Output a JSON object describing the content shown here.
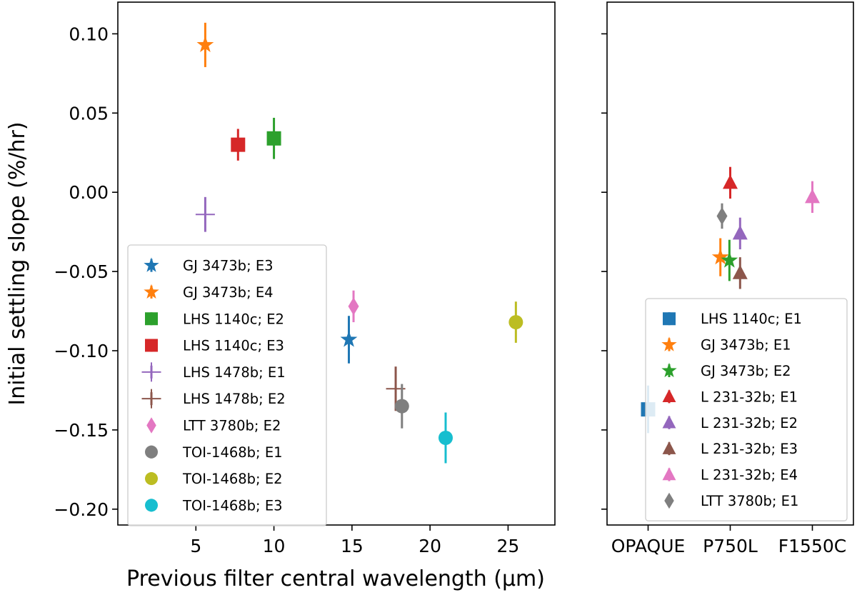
{
  "chart_data": [
    {
      "type": "scatter",
      "panel": "left",
      "xlabel": "Previous filter central wavelength (μm)",
      "ylabel": "Initial settling slope (%/hr)",
      "xlim": [
        0,
        28
      ],
      "ylim": [
        -0.21,
        0.12
      ],
      "xticks": [
        {
          "value": 5,
          "label": "5"
        },
        {
          "value": 10,
          "label": "10"
        },
        {
          "value": 15,
          "label": "15"
        },
        {
          "value": 20,
          "label": "20"
        },
        {
          "value": 25,
          "label": "25"
        }
      ],
      "yticks": [
        {
          "value": 0.1,
          "label": "0.10"
        },
        {
          "value": 0.05,
          "label": "0.05"
        },
        {
          "value": 0.0,
          "label": "0.00"
        },
        {
          "value": -0.05,
          "label": "−0.05"
        },
        {
          "value": -0.1,
          "label": "−0.10"
        },
        {
          "value": -0.15,
          "label": "−0.15"
        },
        {
          "value": -0.2,
          "label": "−0.20"
        }
      ],
      "legend_position": "center-left",
      "series": [
        {
          "name": "GJ 3473b; E3",
          "color": "#1f77b4",
          "marker": "star",
          "x": 14.8,
          "y": -0.093,
          "yerr": 0.015
        },
        {
          "name": "GJ 3473b; E4",
          "color": "#ff7f0e",
          "marker": "star",
          "x": 5.6,
          "y": 0.093,
          "yerr": 0.014
        },
        {
          "name": "LHS 1140c; E2",
          "color": "#2ca02c",
          "marker": "square",
          "x": 10.0,
          "y": 0.034,
          "yerr": 0.013
        },
        {
          "name": "LHS 1140c; E3",
          "color": "#d62728",
          "marker": "square",
          "x": 7.7,
          "y": 0.03,
          "yerr": 0.01
        },
        {
          "name": "LHS 1478b; E1",
          "color": "#9467bd",
          "marker": "plus",
          "x": 5.6,
          "y": -0.014,
          "yerr": 0.011
        },
        {
          "name": "LHS 1478b; E2",
          "color": "#8c564b",
          "marker": "plus",
          "x": 17.8,
          "y": -0.124,
          "yerr": 0.014
        },
        {
          "name": "LTT 3780b; E2",
          "color": "#e377c2",
          "marker": "diamond",
          "x": 15.1,
          "y": -0.072,
          "yerr": 0.01
        },
        {
          "name": "TOI-1468b; E1",
          "color": "#7f7f7f",
          "marker": "circle",
          "x": 18.2,
          "y": -0.135,
          "yerr": 0.014
        },
        {
          "name": "TOI-1468b; E2",
          "color": "#bcbd22",
          "marker": "circle",
          "x": 25.5,
          "y": -0.082,
          "yerr": 0.013
        },
        {
          "name": "TOI-1468b; E3",
          "color": "#17becf",
          "marker": "circle",
          "x": 21.0,
          "y": -0.155,
          "yerr": 0.016
        }
      ]
    },
    {
      "type": "scatter",
      "panel": "right",
      "xlabel": "",
      "ylabel": "",
      "xlim": [
        -0.5,
        2.5
      ],
      "ylim": [
        -0.21,
        0.12
      ],
      "categories": [
        "OPAQUE",
        "P750L",
        "F1550C"
      ],
      "yticks": [
        0.1,
        0.05,
        0.0,
        -0.05,
        -0.1,
        -0.15,
        -0.2
      ],
      "legend_position": "lower-right",
      "series": [
        {
          "name": "LHS 1140c; E1",
          "color": "#1f77b4",
          "marker": "square",
          "x": 0.0,
          "y": -0.137,
          "yerr": 0.015
        },
        {
          "name": "GJ 3473b; E1",
          "color": "#ff7f0e",
          "marker": "star",
          "x": 0.88,
          "y": -0.041,
          "yerr": 0.012
        },
        {
          "name": "GJ 3473b; E2",
          "color": "#2ca02c",
          "marker": "star",
          "x": 0.99,
          "y": -0.043,
          "yerr": 0.013
        },
        {
          "name": "L 231-32b; E1",
          "color": "#d62728",
          "marker": "triangle",
          "x": 1.0,
          "y": 0.006,
          "yerr": 0.01
        },
        {
          "name": "L 231-32b; E2",
          "color": "#9467bd",
          "marker": "triangle",
          "x": 1.12,
          "y": -0.026,
          "yerr": 0.01
        },
        {
          "name": "L 231-32b; E3",
          "color": "#8c564b",
          "marker": "triangle",
          "x": 1.12,
          "y": -0.051,
          "yerr": 0.01
        },
        {
          "name": "L 231-32b; E4",
          "color": "#e377c2",
          "marker": "triangle",
          "x": 2.0,
          "y": -0.003,
          "yerr": 0.01
        },
        {
          "name": "LTT 3780b; E1",
          "color": "#7f7f7f",
          "marker": "diamond",
          "x": 0.9,
          "y": -0.015,
          "yerr": 0.008
        }
      ]
    }
  ]
}
